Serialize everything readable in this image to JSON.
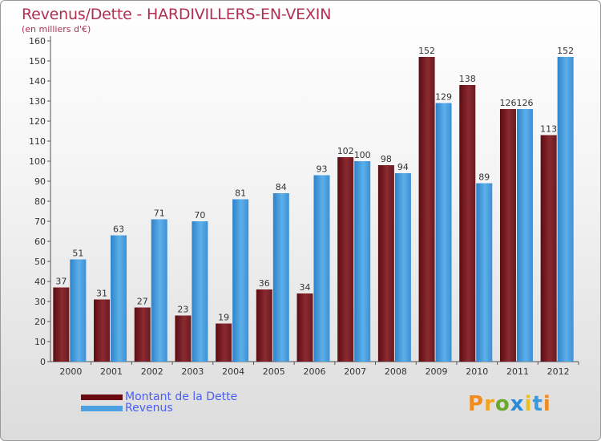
{
  "title": "Revenus/Dette - HARDIVILLERS-EN-VEXIN",
  "subtitle": "(en milliers d'€)",
  "logo_text": "Proxiti",
  "colors": {
    "dette": "#7a1c22",
    "revenus": "#4aa0e0",
    "title": "#b03050",
    "legend_text": "#4a5ff0"
  },
  "chart_data": {
    "type": "bar",
    "categories": [
      "2000",
      "2001",
      "2002",
      "2003",
      "2004",
      "2005",
      "2006",
      "2007",
      "2008",
      "2009",
      "2010",
      "2011",
      "2012"
    ],
    "series": [
      {
        "name": "Montant de la Dette",
        "values": [
          37,
          31,
          27,
          23,
          19,
          36,
          34,
          102,
          98,
          152,
          138,
          126,
          113
        ]
      },
      {
        "name": "Revenus",
        "values": [
          51,
          63,
          71,
          70,
          81,
          84,
          93,
          100,
          94,
          129,
          89,
          126,
          152
        ]
      }
    ],
    "ylim": [
      0,
      160
    ],
    "yticks": [
      0,
      10,
      20,
      30,
      40,
      50,
      60,
      70,
      80,
      90,
      100,
      110,
      120,
      130,
      140,
      150,
      160
    ],
    "grid": false,
    "legend_position": "bottom-left"
  }
}
